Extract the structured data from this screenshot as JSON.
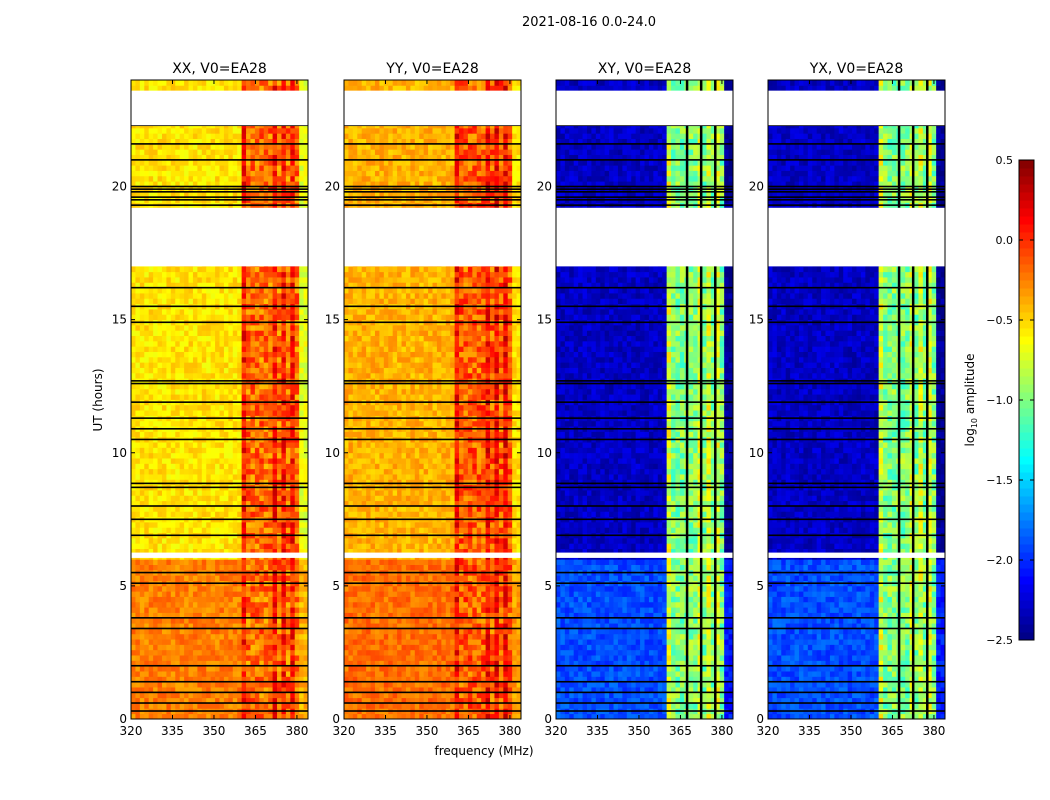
{
  "chart_data": {
    "type": "heatmap",
    "suptitle": "2021-08-16 0.0-24.0",
    "xlabel": "frequency (MHz)",
    "ylabel": "UT (hours)",
    "xlim": [
      320,
      384
    ],
    "ylim": [
      0,
      24
    ],
    "xticks": [
      320,
      335,
      350,
      365,
      380
    ],
    "yticks": [
      0,
      5,
      10,
      15,
      20
    ],
    "colorbar": {
      "label_main": "log",
      "label_sub": "10",
      "label_rest": " amplitude",
      "range": [
        -2.5,
        0.5
      ],
      "ticks": [
        "0.5",
        "0.0",
        "−0.5",
        "−1.0",
        "−1.5",
        "−2.0",
        "−2.5"
      ],
      "tick_values": [
        0.5,
        0.0,
        -0.5,
        -1.0,
        -1.5,
        -2.0,
        -2.5
      ],
      "colormap": "jet"
    },
    "blank_time_ranges": [
      [
        22.3,
        23.6
      ],
      [
        17.0,
        19.2
      ],
      [
        6.05,
        6.25
      ]
    ],
    "flagged_time_lines": [
      0.3,
      0.6,
      1.0,
      1.4,
      2.0,
      3.4,
      3.8,
      5.1,
      5.5,
      6.9,
      7.5,
      8.0,
      8.7,
      8.85,
      10.5,
      10.9,
      11.3,
      11.9,
      12.6,
      12.7,
      14.9,
      15.5,
      16.2,
      19.3,
      19.5,
      19.6,
      19.8,
      19.9,
      20.0,
      21.0,
      21.6,
      22.3
    ],
    "active_band_mhz": [
      360.7,
      380.3
    ],
    "band_gaps_mhz": [
      367.3,
      372.4,
      377.5
    ],
    "panels": [
      {
        "title": "XX, V0=EA28",
        "base_level": -0.55,
        "early_level": -0.25,
        "band_level": -0.1,
        "band_gaps_flagged": false,
        "show_ylabel": true,
        "show_xlabel": false
      },
      {
        "title": "YY, V0=EA28",
        "base_level": -0.4,
        "early_level": -0.2,
        "band_level": -0.05,
        "band_gaps_flagged": false,
        "show_ylabel": false,
        "show_xlabel": true
      },
      {
        "title": "XY, V0=EA28",
        "base_level": -2.3,
        "early_level": -1.9,
        "band_level": -0.9,
        "band_gaps_flagged": true,
        "show_ylabel": false,
        "show_xlabel": false
      },
      {
        "title": "YX, V0=EA28",
        "base_level": -2.3,
        "early_level": -1.9,
        "band_level": -0.9,
        "band_gaps_flagged": true,
        "show_ylabel": false,
        "show_xlabel": false
      }
    ]
  }
}
